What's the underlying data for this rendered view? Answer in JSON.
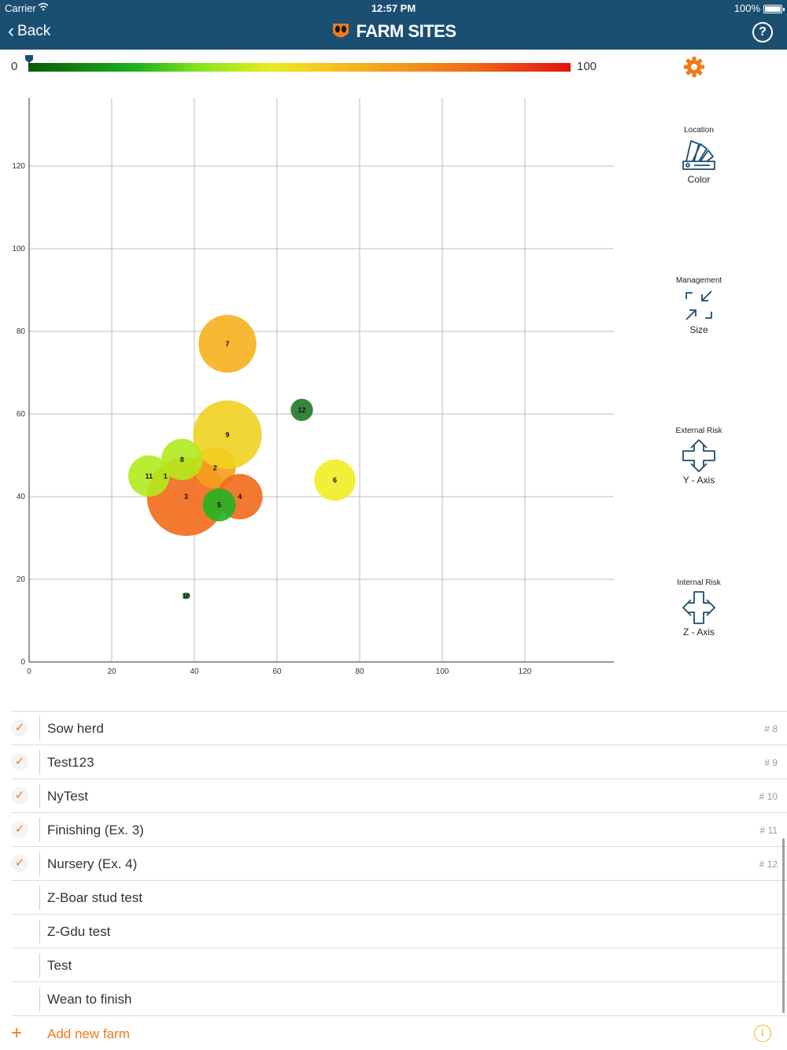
{
  "status": {
    "carrier": "Carrier",
    "time": "12:57 PM",
    "battery": "100%"
  },
  "nav": {
    "back": "Back",
    "title": "FARM SITES",
    "help": "?"
  },
  "scale": {
    "min": "0",
    "max": "100"
  },
  "controls": [
    {
      "top": "Location",
      "bottom": "Color",
      "icon": "color-swatch-icon"
    },
    {
      "top": "Management",
      "bottom": "Size",
      "icon": "resize-icon"
    },
    {
      "top": "External Risk",
      "bottom": "Y - Axis",
      "icon": "y-axis-arrows-icon"
    },
    {
      "top": "Internal Risk",
      "bottom": "Z - Axis",
      "icon": "z-axis-arrows-icon"
    }
  ],
  "chart_data": {
    "type": "scatter",
    "xlim": [
      0,
      138
    ],
    "ylim": [
      0,
      138
    ],
    "x_ticks": [
      0,
      20,
      40,
      60,
      80,
      100,
      120
    ],
    "y_ticks": [
      0,
      20,
      40,
      60,
      80,
      100,
      120
    ],
    "grid": true,
    "points": [
      {
        "label": "3",
        "x": 38,
        "y": 40,
        "r": 9.5,
        "color": "#f26a1b"
      },
      {
        "label": "2",
        "x": 45,
        "y": 47,
        "r": 5,
        "color": "#f5a01c"
      },
      {
        "label": "7",
        "x": 48,
        "y": 77,
        "r": 7,
        "color": "#f6b01d"
      },
      {
        "label": "9",
        "x": 48,
        "y": 55,
        "r": 8.3,
        "color": "#efd21f"
      },
      {
        "label": "4",
        "x": 51,
        "y": 40,
        "r": 5.5,
        "color": "#f26a1b"
      },
      {
        "label": "11",
        "x": 29,
        "y": 45,
        "r": 5,
        "color": "#b4ea1e"
      },
      {
        "label": "1",
        "x": 33,
        "y": 45,
        "r": 0,
        "color": "#b4ea1e"
      },
      {
        "label": "8",
        "x": 37,
        "y": 49,
        "r": 5,
        "color": "#b4ea1e"
      },
      {
        "label": "5",
        "x": 46,
        "y": 38,
        "r": 4,
        "color": "#22b323"
      },
      {
        "label": "6",
        "x": 74,
        "y": 44,
        "r": 5,
        "color": "#eeee22"
      },
      {
        "label": "12",
        "x": 66,
        "y": 61,
        "r": 2.7,
        "color": "#1e7a26"
      },
      {
        "label": "10",
        "x": 38,
        "y": 16,
        "r": 0.8,
        "color": "#1e7a26"
      }
    ]
  },
  "farms": [
    {
      "name": "Sow herd",
      "num": "# 8",
      "checked": true
    },
    {
      "name": "Test123",
      "num": "# 9",
      "checked": true
    },
    {
      "name": "NyTest",
      "num": "# 10",
      "checked": true
    },
    {
      "name": "Finishing (Ex. 3)",
      "num": "# 11",
      "checked": true
    },
    {
      "name": "Nursery (Ex. 4)",
      "num": "# 12",
      "checked": true
    },
    {
      "name": "Z-Boar stud test",
      "num": "",
      "checked": false
    },
    {
      "name": "Z-Gdu test",
      "num": "",
      "checked": false
    },
    {
      "name": "Test",
      "num": "",
      "checked": false
    },
    {
      "name": "Wean to finish",
      "num": "",
      "checked": false
    }
  ],
  "add_farm": {
    "plus": "+",
    "label": "Add new farm",
    "info": "i"
  },
  "colors": {
    "nav": "#1b4f72",
    "accent": "#f07a1a"
  }
}
